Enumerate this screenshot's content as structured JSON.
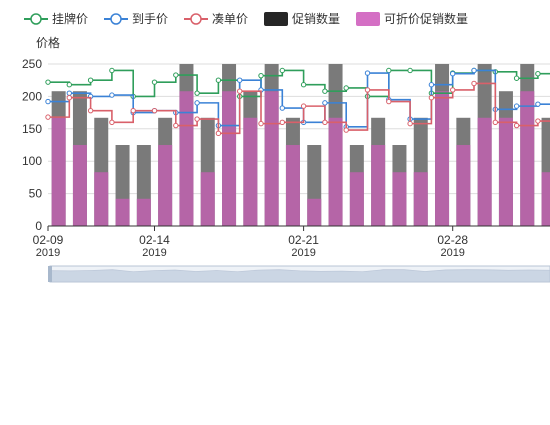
{
  "chart_data": {
    "type": "bar",
    "ylabel": "价格",
    "ylim": [
      0,
      250
    ],
    "yticks": [
      0,
      50,
      100,
      150,
      200,
      250
    ],
    "grid": true,
    "legend_position": "top",
    "dates": [
      "2019-02-09",
      "2019-02-10",
      "2019-02-11",
      "2019-02-12",
      "2019-02-13",
      "2019-02-14",
      "2019-02-15",
      "2019-02-16",
      "2019-02-17",
      "2019-02-18",
      "2019-02-19",
      "2019-02-20",
      "2019-02-21",
      "2019-02-22",
      "2019-02-23",
      "2019-02-24",
      "2019-02-25",
      "2019-02-26",
      "2019-02-27",
      "2019-02-28",
      "2019-03-01",
      "2019-03-02",
      "2019-03-03",
      "2019-03-04",
      "2019-03-05"
    ],
    "x_tick_labels": [
      {
        "date": "2019-02-09",
        "line1": "02-09",
        "line2": "2019"
      },
      {
        "date": "2019-02-14",
        "line1": "02-14",
        "line2": "2019"
      },
      {
        "date": "2019-02-21",
        "line1": "02-21",
        "line2": "2019"
      },
      {
        "date": "2019-02-28",
        "line1": "02-28",
        "line2": "2019"
      }
    ],
    "series": [
      {
        "name": "挂牌价",
        "type": "step-line",
        "color": "#2f9e5b",
        "values": [
          222,
          218,
          225,
          240,
          200,
          222,
          233,
          205,
          225,
          200,
          232,
          240,
          218,
          208,
          213,
          200,
          240,
          240,
          205,
          236,
          240,
          238,
          228,
          235,
          230
        ]
      },
      {
        "name": "到手价",
        "type": "step-line",
        "color": "#3b82d6",
        "values": [
          192,
          205,
          200,
          202,
          175,
          178,
          175,
          190,
          155,
          225,
          210,
          182,
          160,
          190,
          153,
          236,
          195,
          165,
          218,
          235,
          240,
          180,
          185,
          188,
          190
        ]
      },
      {
        "name": "凑单价",
        "type": "step-line",
        "color": "#d9606a",
        "values": [
          168,
          198,
          178,
          160,
          178,
          178,
          155,
          165,
          143,
          208,
          158,
          160,
          185,
          160,
          148,
          210,
          192,
          158,
          198,
          210,
          220,
          160,
          155,
          162,
          160
        ]
      },
      {
        "name": "促销数量",
        "type": "bar",
        "color": "#7a7a7a",
        "values": [
          208,
          208,
          167,
          125,
          125,
          167,
          250,
          167,
          250,
          208,
          250,
          167,
          125,
          250,
          125,
          167,
          125,
          167,
          250,
          167,
          250,
          208,
          250,
          167,
          208
        ]
      },
      {
        "name": "可折价促销数量",
        "type": "bar",
        "color": "#b565a7",
        "values": [
          167,
          125,
          83,
          42,
          42,
          125,
          208,
          83,
          208,
          167,
          208,
          125,
          42,
          167,
          83,
          125,
          83,
          83,
          208,
          125,
          167,
          167,
          208,
          83,
          167
        ]
      }
    ]
  },
  "legend": {
    "items": [
      {
        "label": "挂牌价",
        "color": "#2f9e5b",
        "kind": "line"
      },
      {
        "label": "到手价",
        "color": "#3b82d6",
        "kind": "line"
      },
      {
        "label": "凑单价",
        "color": "#d9606a",
        "kind": "line"
      },
      {
        "label": "促销数量",
        "color": "#262626",
        "kind": "box"
      },
      {
        "label": "可折价促销数量",
        "color": "#d46fc4",
        "kind": "box"
      }
    ]
  },
  "colors": {
    "grid": "#dddddd",
    "axis": "#333333",
    "tick_text": "#333333",
    "zoom_bg": "#eef2f7",
    "zoom_fill": "#c8d4e3",
    "zoom_border": "#b8c4d6"
  }
}
